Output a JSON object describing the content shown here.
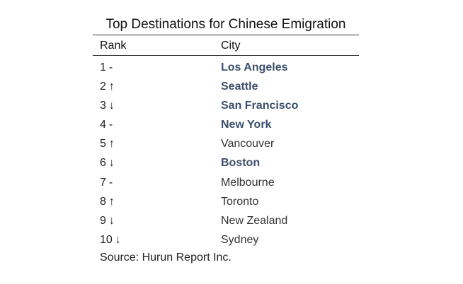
{
  "chart_data": {
    "type": "table",
    "title": "Top Destinations for Chinese Emigration",
    "columns": [
      "Rank",
      "City"
    ],
    "rows": [
      {
        "rank": "1",
        "trend": "-",
        "city": "Los Angeles",
        "highlight": true
      },
      {
        "rank": "2",
        "trend": "↑",
        "city": "Seattle",
        "highlight": true
      },
      {
        "rank": "3",
        "trend": "↓",
        "city": "San Francisco",
        "highlight": true
      },
      {
        "rank": "4",
        "trend": "-",
        "city": "New York",
        "highlight": true
      },
      {
        "rank": "5",
        "trend": "↑",
        "city": "Vancouver",
        "highlight": false
      },
      {
        "rank": "6",
        "trend": "↓",
        "city": "Boston",
        "highlight": true
      },
      {
        "rank": "7",
        "trend": "-",
        "city": "Melbourne",
        "highlight": false
      },
      {
        "rank": "8",
        "trend": "↑",
        "city": "Toronto",
        "highlight": false
      },
      {
        "rank": "9",
        "trend": "↓",
        "city": "New Zealand",
        "highlight": false
      },
      {
        "rank": "10",
        "trend": "↓",
        "city": "Sydney",
        "highlight": false
      }
    ],
    "source": "Source: Hurun Report Inc.",
    "colors": {
      "highlight": "#3d4f6b",
      "text": "#222222"
    }
  }
}
